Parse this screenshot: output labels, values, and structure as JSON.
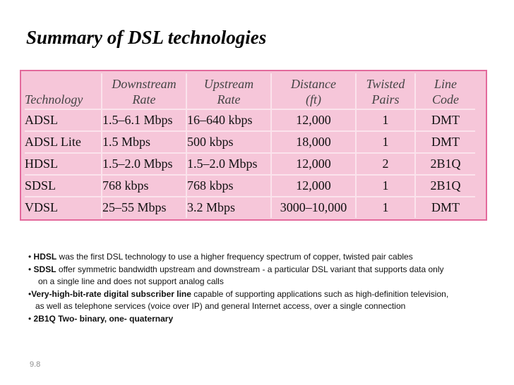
{
  "slide": {
    "title": "Summary of DSL technologies",
    "page_number": "9.8"
  },
  "table": {
    "headers": [
      {
        "line1": "",
        "line2": "Technology"
      },
      {
        "line1": "Downstream",
        "line2": "Rate"
      },
      {
        "line1": "Upstream",
        "line2": "Rate"
      },
      {
        "line1": "Distance",
        "line2": "(ft)"
      },
      {
        "line1": "Twisted",
        "line2": "Pairs"
      },
      {
        "line1": "Line",
        "line2": "Code"
      }
    ],
    "rows": [
      [
        "ADSL",
        "1.5–6.1 Mbps",
        "16–640 kbps",
        "12,000",
        "1",
        "DMT"
      ],
      [
        "ADSL Lite",
        "1.5 Mbps",
        "500 kbps",
        "18,000",
        "1",
        "DMT"
      ],
      [
        "HDSL",
        "1.5–2.0 Mbps",
        "1.5–2.0 Mbps",
        "12,000",
        "2",
        "2B1Q"
      ],
      [
        "SDSL",
        "768 kbps",
        "768 kbps",
        "12,000",
        "1",
        "2B1Q"
      ],
      [
        "VDSL",
        "25–55 Mbps",
        "3.2 Mbps",
        "3000–10,000",
        "1",
        "DMT"
      ]
    ],
    "colors": {
      "fill": "#f6c6d9",
      "border": "#e36a9c",
      "grid": "#fbe3ec"
    }
  },
  "notes": {
    "hdsl_bullet": "•",
    "hdsl_term": "HDSL",
    "hdsl_text": " was the first DSL technology to use a higher frequency spectrum of copper, twisted pair cables",
    "sdsl_bullet": "•",
    "sdsl_term": "SDSL",
    "sdsl_text": " offer symmetric bandwidth upstream and downstream - a particular DSL variant that supports data only",
    "sdsl_text2": "on a single line and does not support analog calls",
    "vdsl_bullet": "•",
    "vdsl_term": "Very-high-bit-rate digital subscriber line",
    "vdsl_text": " capable of supporting applications such as high-definition television,",
    "vdsl_text2": "as well as telephone services (voice over IP) and general Internet access, over a single connection",
    "b2b1q_bullet": "•",
    "b2b1q_text": "2B1Q Two- binary, one- quaternary"
  }
}
